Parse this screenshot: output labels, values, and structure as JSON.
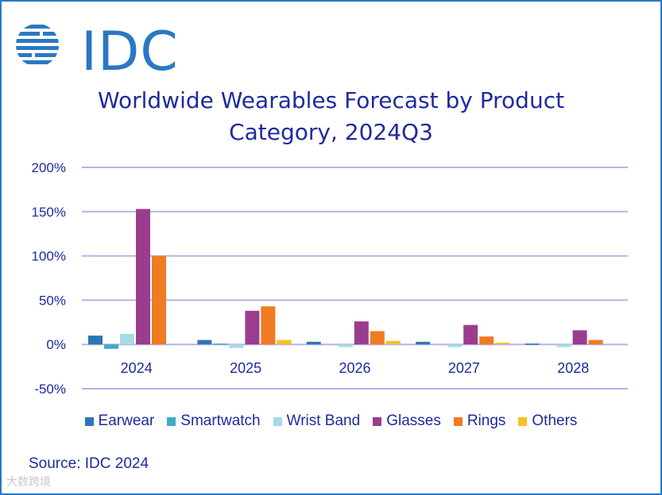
{
  "logo_text": "IDC",
  "watermark": "大数跨境",
  "source": "Source: IDC 2024",
  "colors": {
    "frame": "#2a78c2",
    "grid": "#b7b2e6",
    "text": "#1f2a9e"
  },
  "chart_data": {
    "type": "bar",
    "title_lines": [
      "Worldwide Wearables Forecast by Product",
      "Category, 2024Q3"
    ],
    "categories": [
      "2024",
      "2025",
      "2026",
      "2027",
      "2028"
    ],
    "series": [
      {
        "name": "Earwear",
        "color": "#2e75b6",
        "values": [
          10,
          5,
          3,
          3,
          1
        ]
      },
      {
        "name": "Smartwatch",
        "color": "#41a9c9",
        "values": [
          -5,
          1,
          0,
          0,
          0
        ]
      },
      {
        "name": "Wrist Band",
        "color": "#a5dbe7",
        "values": [
          12,
          -4,
          -3,
          -3,
          -3
        ]
      },
      {
        "name": "Glasses",
        "color": "#9b3d8e",
        "values": [
          153,
          38,
          26,
          22,
          16
        ]
      },
      {
        "name": "Rings",
        "color": "#f07b22",
        "values": [
          100,
          43,
          15,
          9,
          5
        ]
      },
      {
        "name": "Others",
        "color": "#f5c02a",
        "values": [
          0,
          5,
          4,
          2,
          0
        ]
      }
    ],
    "yticks": [
      "200%",
      "150%",
      "100%",
      "50%",
      "0%",
      "-50%"
    ],
    "ytick_values": [
      200,
      150,
      100,
      50,
      0,
      -50
    ],
    "ylim": [
      -50,
      200
    ],
    "xlabel": "",
    "ylabel": "",
    "grid": true,
    "legend_position": "bottom"
  }
}
